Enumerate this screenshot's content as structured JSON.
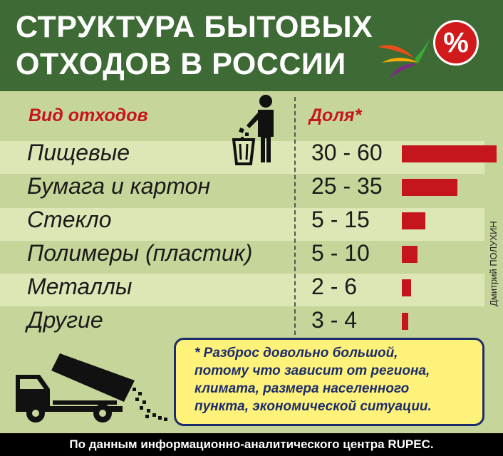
{
  "header": {
    "title_line1": "СТРУКТУРА БЫТОВЫХ",
    "title_line2": "ОТХОДОВ В РОССИИ",
    "badge": "%"
  },
  "columns": {
    "category": "Вид отходов",
    "share": "Доля*"
  },
  "chart_data": {
    "type": "bar",
    "orientation": "horizontal",
    "categories": [
      "Пищевые",
      "Бумага и картон",
      "Стекло",
      "Полимеры (пластик)",
      "Металлы",
      "Другие"
    ],
    "ranges": [
      "30 - 60",
      "25 - 35",
      "5 - 15",
      "5 - 10",
      "2 - 6",
      "3 - 4"
    ],
    "values_min": [
      30,
      25,
      5,
      5,
      2,
      3
    ],
    "values_max": [
      60,
      35,
      15,
      10,
      6,
      4
    ],
    "bar_color": "#c4161c"
  },
  "note": {
    "line1": "* Разброс довольно большой,",
    "line2": "потому что зависит от региона,",
    "line3": " климата, размера населенного",
    "line4": "пункта, экономической ситуации."
  },
  "credit": "Дмитрий ПОЛУХИН",
  "footer": "По данным информационно-аналитического центра RUPEC.",
  "colors": {
    "header_bg": "#3e6b35",
    "body_bg": "#c6d69a",
    "accent_red": "#c4161c",
    "note_bg": "#fff27a",
    "note_text": "#1d2d6b"
  }
}
